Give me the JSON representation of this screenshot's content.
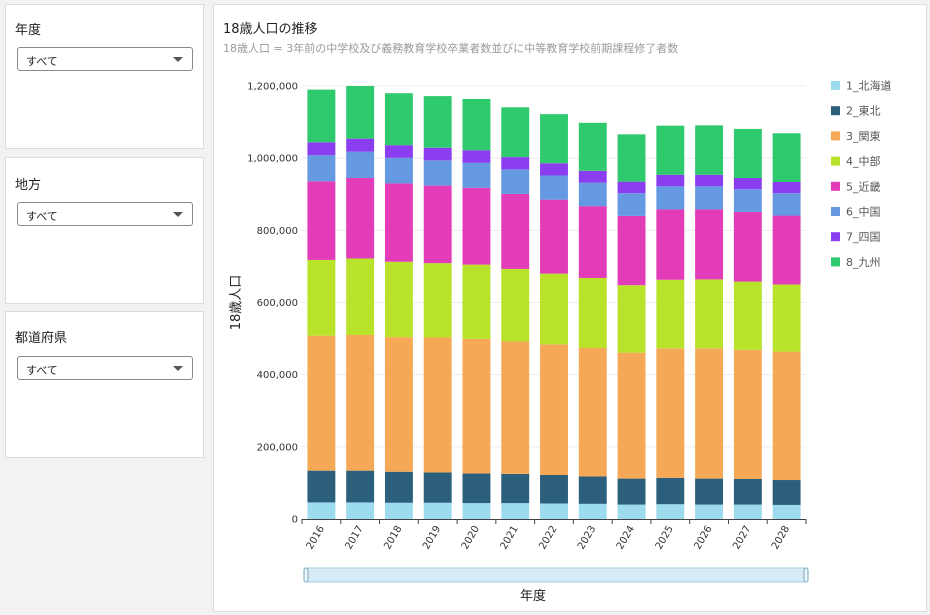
{
  "filters": [
    {
      "label": "年度",
      "value": "すべて"
    },
    {
      "label": "地方",
      "value": "すべて"
    },
    {
      "label": "都道府県",
      "value": "すべて"
    }
  ],
  "chart": {
    "title": "18歳人口の推移",
    "subtitle": "18歳人口 = 3年前の中学校及び義務教育学校卒業者数並びに中等教育学校前期課程修了者数"
  },
  "chart_data": {
    "type": "bar",
    "stacked": true,
    "title": "18歳人口の推移",
    "xlabel": "年度",
    "ylabel": "18歳人口",
    "ylim": [
      0,
      1200000
    ],
    "yticks": [
      "0",
      "200,000",
      "400,000",
      "600,000",
      "800,000",
      "1,000,000",
      "1,200,000"
    ],
    "grid": true,
    "legend_position": "right",
    "categories": [
      "2016",
      "2017",
      "2018",
      "2019",
      "2020",
      "2021",
      "2022",
      "2023",
      "2024",
      "2025",
      "2026",
      "2027",
      "2028"
    ],
    "series": [
      {
        "name": "1_北海道",
        "color": "#9ddcef",
        "values": [
          46000,
          46000,
          45000,
          45000,
          44000,
          44000,
          43000,
          42000,
          40000,
          41000,
          40000,
          40000,
          39000
        ]
      },
      {
        "name": "2_東北",
        "color": "#2b5f7c",
        "values": [
          88000,
          88000,
          86000,
          84000,
          82000,
          81000,
          79000,
          76000,
          72000,
          73000,
          72000,
          71000,
          69000
        ]
      },
      {
        "name": "3_関東",
        "color": "#f5a957",
        "values": [
          374000,
          376000,
          373000,
          374000,
          373000,
          367000,
          362000,
          356000,
          349000,
          359000,
          361000,
          358000,
          356000
        ]
      },
      {
        "name": "4_中部",
        "color": "#b9e32b",
        "values": [
          210000,
          212000,
          209000,
          206000,
          206000,
          201000,
          196000,
          194000,
          187000,
          190000,
          191000,
          189000,
          186000
        ]
      },
      {
        "name": "5_近畿",
        "color": "#e23cb8",
        "values": [
          218000,
          223000,
          217000,
          215000,
          213000,
          208000,
          205000,
          199000,
          192000,
          195000,
          194000,
          193000,
          191000
        ]
      },
      {
        "name": "6_中国",
        "color": "#6599e2",
        "values": [
          72000,
          73000,
          71000,
          70000,
          69000,
          68000,
          67000,
          65000,
          63000,
          64000,
          64000,
          63000,
          62000
        ]
      },
      {
        "name": "7_四国",
        "color": "#8a3ef0",
        "values": [
          36000,
          36000,
          35000,
          35000,
          35000,
          34000,
          34000,
          33000,
          32000,
          32000,
          32000,
          31000,
          31000
        ]
      },
      {
        "name": "8_九州",
        "color": "#2fc96e",
        "values": [
          146000,
          146000,
          144000,
          143000,
          142000,
          138000,
          136000,
          133000,
          131000,
          136000,
          137000,
          136000,
          135000
        ]
      }
    ]
  }
}
